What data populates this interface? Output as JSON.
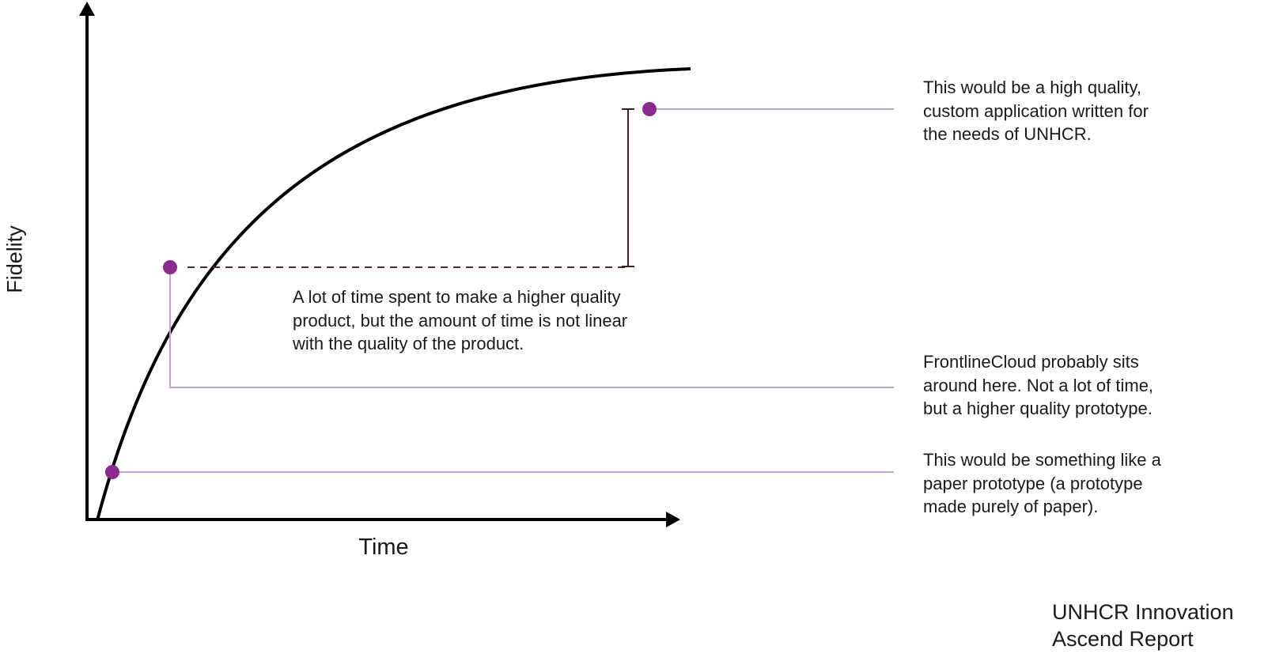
{
  "colors": {
    "marker": "#8B2A8E",
    "guide_line": "#C4A3CC",
    "axis": "#000000",
    "curve": "#000000",
    "dashed_connector": "#4A2A2A",
    "gap_bracket": "#3A1F1F"
  },
  "axes": {
    "x_label": "Time",
    "y_label": "Fidelity"
  },
  "notes": {
    "high": [
      "This would be a high quality,",
      "custom application written for",
      "the needs of UNHCR."
    ],
    "frontline": [
      "FrontlineCloud probably sits",
      "around here. Not a lot of time,",
      "but a higher quality prototype."
    ],
    "paper": [
      "This would be something like  a",
      "paper prototype (a prototype",
      "made purely of paper)."
    ],
    "middle": [
      "A lot of time spent to make a higher quality",
      "product, but the amount of time is not linear",
      "with the quality of the product."
    ]
  },
  "footer": [
    "UNHCR Innovation",
    "Ascend Report"
  ]
}
